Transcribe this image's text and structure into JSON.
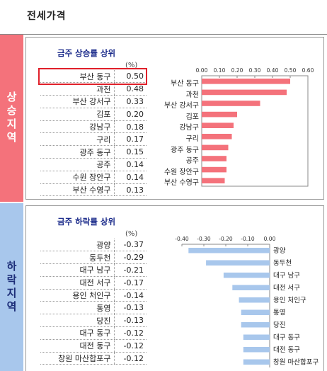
{
  "page_title": "전세가격",
  "rise": {
    "side_label": "상승지역",
    "subtitle": "금주 상승률 상위",
    "unit": "(%)",
    "rows": [
      {
        "name": "부산 동구",
        "value": "0.50"
      },
      {
        "name": "과천",
        "value": "0.48"
      },
      {
        "name": "부산 강서구",
        "value": "0.33"
      },
      {
        "name": "김포",
        "value": "0.20"
      },
      {
        "name": "강남구",
        "value": "0.18"
      },
      {
        "name": "구리",
        "value": "0.17"
      },
      {
        "name": "광주 동구",
        "value": "0.15"
      },
      {
        "name": "공주",
        "value": "0.14"
      },
      {
        "name": "수원 장안구",
        "value": "0.14"
      },
      {
        "name": "부산 수영구",
        "value": "0.13"
      }
    ]
  },
  "fall": {
    "side_label": "하락지역",
    "subtitle": "금주 하락률 상위",
    "unit": "(%)",
    "rows": [
      {
        "name": "광양",
        "value": "-0.37"
      },
      {
        "name": "동두천",
        "value": "-0.29"
      },
      {
        "name": "대구 남구",
        "value": "-0.21"
      },
      {
        "name": "대전 서구",
        "value": "-0.17"
      },
      {
        "name": "용인 처인구",
        "value": "-0.14"
      },
      {
        "name": "통영",
        "value": "-0.13"
      },
      {
        "name": "당진",
        "value": "-0.13"
      },
      {
        "name": "대구 동구",
        "value": "-0.12"
      },
      {
        "name": "대전 동구",
        "value": "-0.12"
      },
      {
        "name": "창원 마산합포구",
        "value": "-0.12"
      }
    ]
  },
  "colors": {
    "rise_bar": "#f4727b",
    "fall_bar": "#a8c7ec",
    "highlight": "#e0202a"
  },
  "chart_data": [
    {
      "type": "bar",
      "orientation": "horizontal",
      "title": "금주 상승률 상위",
      "categories": [
        "부산 동구",
        "과천",
        "부산 강서구",
        "김포",
        "강남구",
        "구리",
        "광주 동구",
        "공주",
        "수원 장안구",
        "부산 수영구"
      ],
      "values": [
        0.5,
        0.48,
        0.33,
        0.2,
        0.18,
        0.17,
        0.15,
        0.14,
        0.14,
        0.13
      ],
      "xlim": [
        0,
        0.6
      ],
      "xticks": [
        "0.00",
        "0.10",
        "0.20",
        "0.30",
        "0.40",
        "0.50",
        "0.60"
      ],
      "grid": false
    },
    {
      "type": "bar",
      "orientation": "horizontal",
      "title": "금주 하락률 상위",
      "categories": [
        "광양",
        "동두천",
        "대구 남구",
        "대전 서구",
        "용인 처인구",
        "통영",
        "당진",
        "대구 동구",
        "대전 동구",
        "창원 마산합포구"
      ],
      "values": [
        -0.37,
        -0.29,
        -0.21,
        -0.17,
        -0.14,
        -0.13,
        -0.13,
        -0.12,
        -0.12,
        -0.12
      ],
      "xlim": [
        -0.4,
        0
      ],
      "xticks": [
        "-0.40",
        "-0.30",
        "-0.20",
        "-0.10",
        "0.00"
      ],
      "grid": false
    }
  ]
}
